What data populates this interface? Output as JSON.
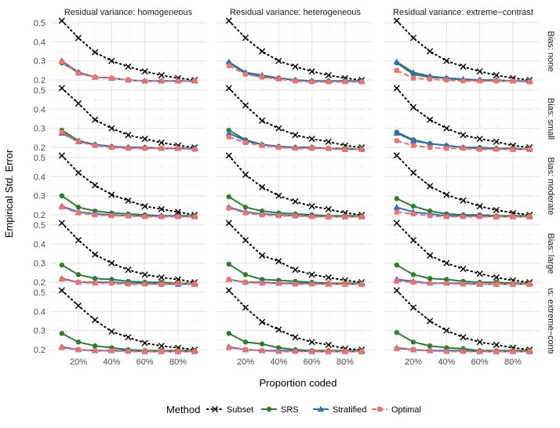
{
  "chart_data": {
    "type": "line",
    "facet_cols": [
      "Residual variance: homogeneous",
      "Residual variance: heterogeneous",
      "Residual variance: extreme−contrast"
    ],
    "facet_rows": [
      "Bias: none",
      "Bias: small",
      "Bias: moderate",
      "Bias: large",
      "as: extreme−contr."
    ],
    "xlabel": "Proportion coded",
    "ylabel": "Empirical Std. Error",
    "x": [
      0.1,
      0.2,
      0.3,
      0.4,
      0.5,
      0.6,
      0.7,
      0.8,
      0.9
    ],
    "xlim": [
      0.03,
      0.97
    ],
    "x_ticks": [
      0.2,
      0.4,
      0.6,
      0.8
    ],
    "x_tick_labels": [
      "20%",
      "40%",
      "60%",
      "80%"
    ],
    "ylim": [
      0.18,
      0.52
    ],
    "y_ticks": [
      0.2,
      0.3,
      0.4,
      0.5
    ],
    "y_tick_labels": [
      "0.2",
      "0.3",
      "0.4",
      "0.5"
    ],
    "legend_title": "Method",
    "legend_position": "bottom",
    "methods": [
      "Subset",
      "SRS",
      "Stratified",
      "Optimal"
    ],
    "colors": {
      "Subset": "#000000",
      "SRS": "#2e7d32",
      "Stratified": "#2f6fba",
      "Optimal": "#f07070"
    },
    "panels": [
      [
        {
          "Subset": [
            0.51,
            0.42,
            0.345,
            0.3,
            0.27,
            0.245,
            0.225,
            0.21,
            0.2
          ],
          "SRS": [
            0.29,
            0.24,
            0.215,
            0.21,
            0.2,
            0.195,
            0.195,
            0.195,
            0.195
          ],
          "Stratified": [
            0.3,
            0.24,
            0.215,
            0.21,
            0.2,
            0.195,
            0.195,
            0.195,
            0.195
          ],
          "Optimal": [
            0.295,
            0.235,
            0.215,
            0.21,
            0.2,
            0.195,
            0.195,
            0.195,
            0.195
          ]
        },
        {
          "Subset": [
            0.51,
            0.42,
            0.35,
            0.3,
            0.27,
            0.245,
            0.225,
            0.21,
            0.2
          ],
          "SRS": [
            0.29,
            0.235,
            0.215,
            0.21,
            0.2,
            0.195,
            0.195,
            0.195,
            0.195
          ],
          "Stratified": [
            0.295,
            0.24,
            0.225,
            0.21,
            0.2,
            0.195,
            0.195,
            0.195,
            0.195
          ],
          "Optimal": [
            0.275,
            0.23,
            0.215,
            0.205,
            0.195,
            0.19,
            0.19,
            0.19,
            0.19
          ]
        },
        {
          "Subset": [
            0.51,
            0.42,
            0.35,
            0.3,
            0.27,
            0.245,
            0.225,
            0.21,
            0.2
          ],
          "SRS": [
            0.29,
            0.23,
            0.215,
            0.21,
            0.2,
            0.2,
            0.195,
            0.195,
            0.195
          ],
          "Stratified": [
            0.295,
            0.24,
            0.22,
            0.21,
            0.205,
            0.2,
            0.2,
            0.195,
            0.195
          ],
          "Optimal": [
            0.25,
            0.21,
            0.205,
            0.2,
            0.195,
            0.195,
            0.195,
            0.195,
            0.19
          ]
        }
      ],
      [
        {
          "Subset": [
            0.51,
            0.43,
            0.345,
            0.3,
            0.265,
            0.245,
            0.225,
            0.21,
            0.2
          ],
          "SRS": [
            0.29,
            0.235,
            0.215,
            0.205,
            0.2,
            0.2,
            0.195,
            0.195,
            0.195
          ],
          "Stratified": [
            0.275,
            0.23,
            0.215,
            0.205,
            0.2,
            0.2,
            0.195,
            0.195,
            0.195
          ],
          "Optimal": [
            0.28,
            0.23,
            0.21,
            0.2,
            0.195,
            0.195,
            0.195,
            0.195,
            0.19
          ]
        },
        {
          "Subset": [
            0.51,
            0.42,
            0.34,
            0.3,
            0.265,
            0.245,
            0.23,
            0.21,
            0.2
          ],
          "SRS": [
            0.29,
            0.24,
            0.215,
            0.205,
            0.2,
            0.2,
            0.195,
            0.195,
            0.19
          ],
          "Stratified": [
            0.275,
            0.235,
            0.215,
            0.205,
            0.2,
            0.2,
            0.195,
            0.19,
            0.19
          ],
          "Optimal": [
            0.255,
            0.225,
            0.21,
            0.2,
            0.195,
            0.195,
            0.195,
            0.19,
            0.19
          ]
        },
        {
          "Subset": [
            0.51,
            0.41,
            0.345,
            0.3,
            0.265,
            0.245,
            0.23,
            0.21,
            0.2
          ],
          "SRS": [
            0.28,
            0.24,
            0.22,
            0.21,
            0.2,
            0.2,
            0.195,
            0.195,
            0.19
          ],
          "Stratified": [
            0.275,
            0.235,
            0.22,
            0.21,
            0.2,
            0.195,
            0.195,
            0.19,
            0.19
          ],
          "Optimal": [
            0.235,
            0.21,
            0.2,
            0.195,
            0.195,
            0.19,
            0.19,
            0.19,
            0.19
          ]
        }
      ],
      [
        {
          "Subset": [
            0.51,
            0.42,
            0.355,
            0.305,
            0.275,
            0.245,
            0.23,
            0.215,
            0.2
          ],
          "SRS": [
            0.3,
            0.24,
            0.22,
            0.21,
            0.205,
            0.2,
            0.195,
            0.195,
            0.195
          ],
          "Stratified": [
            0.245,
            0.215,
            0.205,
            0.2,
            0.195,
            0.195,
            0.195,
            0.195,
            0.19
          ],
          "Optimal": [
            0.24,
            0.21,
            0.2,
            0.195,
            0.195,
            0.19,
            0.19,
            0.19,
            0.19
          ]
        },
        {
          "Subset": [
            0.51,
            0.41,
            0.345,
            0.3,
            0.27,
            0.245,
            0.23,
            0.21,
            0.2
          ],
          "SRS": [
            0.295,
            0.24,
            0.22,
            0.21,
            0.205,
            0.2,
            0.195,
            0.195,
            0.195
          ],
          "Stratified": [
            0.24,
            0.215,
            0.205,
            0.2,
            0.195,
            0.195,
            0.19,
            0.19,
            0.19
          ],
          "Optimal": [
            0.235,
            0.21,
            0.2,
            0.195,
            0.195,
            0.19,
            0.19,
            0.19,
            0.19
          ]
        },
        {
          "Subset": [
            0.51,
            0.42,
            0.35,
            0.305,
            0.275,
            0.245,
            0.225,
            0.21,
            0.2
          ],
          "SRS": [
            0.285,
            0.245,
            0.22,
            0.205,
            0.2,
            0.2,
            0.195,
            0.195,
            0.195
          ],
          "Stratified": [
            0.24,
            0.215,
            0.205,
            0.195,
            0.195,
            0.195,
            0.19,
            0.19,
            0.19
          ],
          "Optimal": [
            0.215,
            0.205,
            0.195,
            0.19,
            0.19,
            0.19,
            0.19,
            0.19,
            0.19
          ]
        }
      ],
      [
        {
          "Subset": [
            0.51,
            0.42,
            0.345,
            0.3,
            0.265,
            0.24,
            0.225,
            0.215,
            0.2
          ],
          "SRS": [
            0.29,
            0.24,
            0.22,
            0.215,
            0.205,
            0.2,
            0.2,
            0.195,
            0.195
          ],
          "Stratified": [
            0.22,
            0.2,
            0.2,
            0.2,
            0.195,
            0.195,
            0.19,
            0.19,
            0.19
          ],
          "Optimal": [
            0.215,
            0.2,
            0.195,
            0.195,
            0.19,
            0.19,
            0.19,
            0.195,
            0.19
          ]
        },
        {
          "Subset": [
            0.51,
            0.42,
            0.34,
            0.31,
            0.265,
            0.24,
            0.225,
            0.21,
            0.2
          ],
          "SRS": [
            0.295,
            0.24,
            0.215,
            0.21,
            0.205,
            0.2,
            0.195,
            0.195,
            0.195
          ],
          "Stratified": [
            0.215,
            0.2,
            0.2,
            0.195,
            0.195,
            0.195,
            0.19,
            0.19,
            0.19
          ],
          "Optimal": [
            0.215,
            0.2,
            0.195,
            0.195,
            0.19,
            0.19,
            0.19,
            0.19,
            0.19
          ]
        },
        {
          "Subset": [
            0.51,
            0.42,
            0.34,
            0.3,
            0.27,
            0.245,
            0.225,
            0.21,
            0.2
          ],
          "SRS": [
            0.29,
            0.24,
            0.22,
            0.215,
            0.205,
            0.2,
            0.2,
            0.195,
            0.195
          ],
          "Stratified": [
            0.215,
            0.205,
            0.195,
            0.195,
            0.195,
            0.19,
            0.19,
            0.19,
            0.19
          ],
          "Optimal": [
            0.205,
            0.2,
            0.195,
            0.195,
            0.19,
            0.19,
            0.19,
            0.19,
            0.19
          ]
        }
      ],
      [
        {
          "Subset": [
            0.51,
            0.43,
            0.355,
            0.295,
            0.265,
            0.235,
            0.22,
            0.21,
            0.2
          ],
          "SRS": [
            0.285,
            0.24,
            0.22,
            0.21,
            0.2,
            0.195,
            0.195,
            0.195,
            0.195
          ],
          "Stratified": [
            0.215,
            0.2,
            0.195,
            0.195,
            0.195,
            0.19,
            0.19,
            0.19,
            0.19
          ],
          "Optimal": [
            0.21,
            0.2,
            0.195,
            0.195,
            0.19,
            0.19,
            0.19,
            0.19,
            0.19
          ]
        },
        {
          "Subset": [
            0.51,
            0.42,
            0.345,
            0.305,
            0.265,
            0.24,
            0.225,
            0.205,
            0.2
          ],
          "SRS": [
            0.285,
            0.24,
            0.23,
            0.21,
            0.2,
            0.195,
            0.195,
            0.195,
            0.195
          ],
          "Stratified": [
            0.215,
            0.2,
            0.195,
            0.195,
            0.195,
            0.19,
            0.19,
            0.19,
            0.19
          ],
          "Optimal": [
            0.21,
            0.2,
            0.195,
            0.19,
            0.19,
            0.19,
            0.19,
            0.19,
            0.19
          ]
        },
        {
          "Subset": [
            0.51,
            0.42,
            0.35,
            0.3,
            0.265,
            0.24,
            0.225,
            0.21,
            0.2
          ],
          "SRS": [
            0.29,
            0.24,
            0.22,
            0.21,
            0.205,
            0.195,
            0.195,
            0.195,
            0.195
          ],
          "Stratified": [
            0.21,
            0.2,
            0.195,
            0.195,
            0.195,
            0.19,
            0.19,
            0.19,
            0.19
          ],
          "Optimal": [
            0.205,
            0.2,
            0.195,
            0.19,
            0.19,
            0.19,
            0.19,
            0.19,
            0.19
          ]
        }
      ]
    ]
  }
}
